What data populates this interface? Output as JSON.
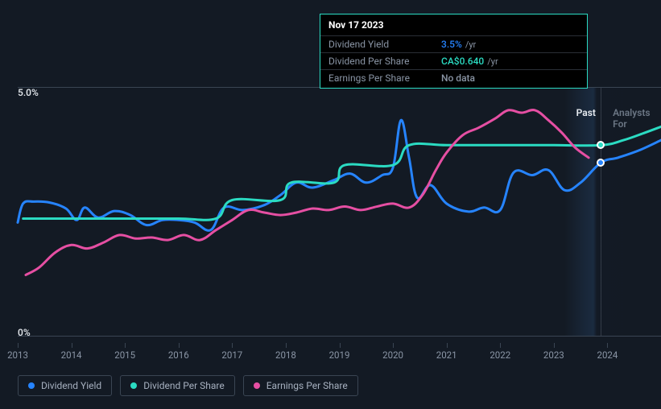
{
  "tooltip": {
    "title": "Nov 17 2023",
    "rows": [
      {
        "label": "Dividend Yield",
        "value": "3.5%",
        "unit": "/yr",
        "color": "#2684ff"
      },
      {
        "label": "Dividend Per Share",
        "value": "CA$0.640",
        "unit": "/yr",
        "color": "#2bdbc2"
      },
      {
        "label": "Earnings Per Share",
        "value": "No data",
        "unit": "",
        "color": "#8a95a5"
      }
    ]
  },
  "chart": {
    "type": "line",
    "background_color": "#131a24",
    "grid_color": "#3a4553",
    "y_axis": {
      "min": 0,
      "max": 5,
      "ticks": [
        {
          "value": 0,
          "label": "0%"
        },
        {
          "value": 5,
          "label": "5.0%"
        }
      ],
      "label_color": "#e8ecf1",
      "fontsize": 12
    },
    "x_axis": {
      "min": 2013,
      "max": 2025,
      "ticks": [
        2013,
        2014,
        2015,
        2016,
        2017,
        2018,
        2019,
        2020,
        2021,
        2022,
        2023,
        2024
      ],
      "label_color": "#8a95a5",
      "fontsize": 11.5
    },
    "cursor_x": 2023.88,
    "periods": [
      {
        "label": "Past",
        "x": 2023.6,
        "color": "#e8ecf1"
      },
      {
        "label": "Analysts For",
        "x": 2024.45,
        "color": "#6b7684"
      }
    ],
    "series": [
      {
        "name": "Dividend Yield",
        "color": "#2684ff",
        "line_width": 3,
        "marker_x": 2023.88,
        "marker_y": 3.5,
        "points": [
          [
            2013.0,
            2.3
          ],
          [
            2013.1,
            2.68
          ],
          [
            2013.3,
            2.72
          ],
          [
            2013.6,
            2.7
          ],
          [
            2013.9,
            2.58
          ],
          [
            2014.1,
            2.35
          ],
          [
            2014.25,
            2.6
          ],
          [
            2014.5,
            2.4
          ],
          [
            2014.8,
            2.53
          ],
          [
            2015.1,
            2.45
          ],
          [
            2015.4,
            2.25
          ],
          [
            2015.7,
            2.35
          ],
          [
            2016.0,
            2.35
          ],
          [
            2016.3,
            2.3
          ],
          [
            2016.6,
            2.15
          ],
          [
            2016.85,
            2.6
          ],
          [
            2017.2,
            2.55
          ],
          [
            2017.6,
            2.65
          ],
          [
            2017.9,
            2.85
          ],
          [
            2018.2,
            3.1
          ],
          [
            2018.5,
            3.0
          ],
          [
            2018.9,
            3.15
          ],
          [
            2019.2,
            3.28
          ],
          [
            2019.5,
            3.1
          ],
          [
            2019.8,
            3.25
          ],
          [
            2020.0,
            3.4
          ],
          [
            2020.15,
            4.35
          ],
          [
            2020.3,
            3.6
          ],
          [
            2020.45,
            2.8
          ],
          [
            2020.7,
            3.05
          ],
          [
            2021.0,
            2.68
          ],
          [
            2021.4,
            2.52
          ],
          [
            2021.7,
            2.6
          ],
          [
            2022.0,
            2.55
          ],
          [
            2022.25,
            3.3
          ],
          [
            2022.6,
            3.25
          ],
          [
            2022.9,
            3.35
          ],
          [
            2023.2,
            2.95
          ],
          [
            2023.5,
            3.1
          ],
          [
            2023.88,
            3.5
          ],
          [
            2024.2,
            3.6
          ],
          [
            2024.6,
            3.75
          ],
          [
            2025.0,
            3.95
          ]
        ]
      },
      {
        "name": "Dividend Per Share",
        "color": "#2bdbc2",
        "line_width": 3,
        "marker_x": 2023.88,
        "marker_y": 3.85,
        "points": [
          [
            2013.1,
            2.38
          ],
          [
            2013.5,
            2.38
          ],
          [
            2014.0,
            2.38
          ],
          [
            2015.0,
            2.38
          ],
          [
            2016.0,
            2.38
          ],
          [
            2016.7,
            2.38
          ],
          [
            2017.0,
            2.75
          ],
          [
            2017.9,
            2.75
          ],
          [
            2018.1,
            3.1
          ],
          [
            2018.9,
            3.1
          ],
          [
            2019.1,
            3.45
          ],
          [
            2020.0,
            3.45
          ],
          [
            2020.3,
            3.85
          ],
          [
            2021.0,
            3.85
          ],
          [
            2022.0,
            3.85
          ],
          [
            2023.0,
            3.85
          ],
          [
            2023.88,
            3.85
          ],
          [
            2024.3,
            3.95
          ],
          [
            2024.7,
            4.1
          ],
          [
            2025.0,
            4.22
          ]
        ]
      },
      {
        "name": "Earnings Per Share",
        "color": "#e64fa3",
        "line_width": 3,
        "points": [
          [
            2013.15,
            1.25
          ],
          [
            2013.4,
            1.4
          ],
          [
            2013.7,
            1.7
          ],
          [
            2014.0,
            1.85
          ],
          [
            2014.3,
            1.78
          ],
          [
            2014.6,
            1.9
          ],
          [
            2014.9,
            2.05
          ],
          [
            2015.2,
            1.98
          ],
          [
            2015.5,
            2.0
          ],
          [
            2015.8,
            1.95
          ],
          [
            2016.1,
            2.05
          ],
          [
            2016.4,
            1.95
          ],
          [
            2016.7,
            2.15
          ],
          [
            2017.0,
            2.35
          ],
          [
            2017.3,
            2.55
          ],
          [
            2017.6,
            2.5
          ],
          [
            2017.9,
            2.45
          ],
          [
            2018.2,
            2.5
          ],
          [
            2018.5,
            2.58
          ],
          [
            2018.8,
            2.55
          ],
          [
            2019.1,
            2.62
          ],
          [
            2019.4,
            2.55
          ],
          [
            2019.7,
            2.62
          ],
          [
            2020.0,
            2.68
          ],
          [
            2020.3,
            2.6
          ],
          [
            2020.55,
            2.85
          ],
          [
            2020.8,
            3.35
          ],
          [
            2021.0,
            3.7
          ],
          [
            2021.3,
            4.05
          ],
          [
            2021.6,
            4.2
          ],
          [
            2021.9,
            4.38
          ],
          [
            2022.15,
            4.55
          ],
          [
            2022.4,
            4.5
          ],
          [
            2022.65,
            4.55
          ],
          [
            2022.9,
            4.35
          ],
          [
            2023.15,
            4.1
          ],
          [
            2023.4,
            3.8
          ],
          [
            2023.65,
            3.6
          ]
        ]
      }
    ]
  },
  "legend": [
    {
      "label": "Dividend Yield",
      "color": "#2684ff"
    },
    {
      "label": "Dividend Per Share",
      "color": "#2bdbc2"
    },
    {
      "label": "Earnings Per Share",
      "color": "#e64fa3"
    }
  ]
}
